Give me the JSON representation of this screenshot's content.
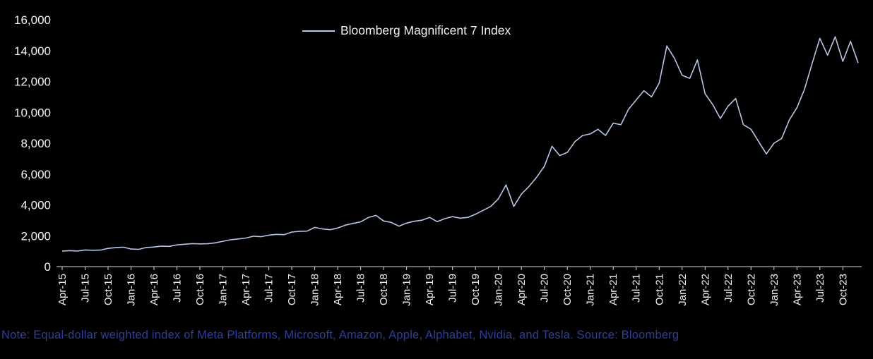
{
  "chart_data": {
    "type": "line",
    "legend": "Bloomberg Magnificent 7 Index",
    "line_color": "#b4c7e7",
    "axis_color": "#d9d9d9",
    "text_color": "#f2f2f2",
    "background_color": "#000000",
    "ylim": [
      0,
      16000
    ],
    "ytick_labels": [
      "0",
      "2,000",
      "4,000",
      "6,000",
      "8,000",
      "10,000",
      "12,000",
      "14,000",
      "16,000"
    ],
    "x_start": "Apr-15",
    "x_interval": "monthly",
    "tick_every": 3,
    "xtick_labels": [
      "Apr-15",
      "Jul-15",
      "Oct-15",
      "Jan-16",
      "Apr-16",
      "Jul-16",
      "Oct-16",
      "Jan-17",
      "Apr-17",
      "Jul-17",
      "Oct-17",
      "Jan-18",
      "Apr-18",
      "Jul-18",
      "Oct-18",
      "Jan-19",
      "Apr-19",
      "Jul-19",
      "Oct-19",
      "Jan-20",
      "Apr-20",
      "Jul-20",
      "Oct-20",
      "Jan-21",
      "Apr-21",
      "Jul-21",
      "Oct-21",
      "Jan-22",
      "Apr-22",
      "Jul-22",
      "Oct-22",
      "Jan-23",
      "Apr-23",
      "Jul-23",
      "Oct-23"
    ],
    "values": [
      1000,
      1040,
      1010,
      1080,
      1060,
      1070,
      1180,
      1230,
      1260,
      1140,
      1120,
      1240,
      1270,
      1330,
      1310,
      1410,
      1450,
      1490,
      1470,
      1480,
      1540,
      1640,
      1740,
      1790,
      1850,
      1970,
      1940,
      2040,
      2090,
      2070,
      2240,
      2290,
      2300,
      2540,
      2440,
      2390,
      2500,
      2690,
      2800,
      2900,
      3180,
      3320,
      2960,
      2860,
      2620,
      2820,
      2940,
      3010,
      3190,
      2910,
      3110,
      3240,
      3140,
      3190,
      3390,
      3650,
      3900,
      4400,
      5300,
      3900,
      4700,
      5200,
      5800,
      6500,
      7800,
      7200,
      7400,
      8100,
      8500,
      8600,
      8900,
      8500,
      9300,
      9200,
      10200,
      10800,
      11400,
      11000,
      11900,
      14300,
      13500,
      12400,
      12200,
      13400,
      11200,
      10500,
      9600,
      10400,
      10900,
      9200,
      8900,
      8100,
      7300,
      8000,
      8300,
      9500,
      10300,
      11500,
      13200,
      14800,
      13700,
      14900,
      13300,
      14600,
      13200
    ]
  },
  "note": {
    "text": "Note: Equal-dollar weighted index of Meta Platforms, Microsoft, Amazon, Apple, Alphabet, Nvidia, and Tesla. Source: Bloomberg",
    "color": "#2e3f9c"
  }
}
